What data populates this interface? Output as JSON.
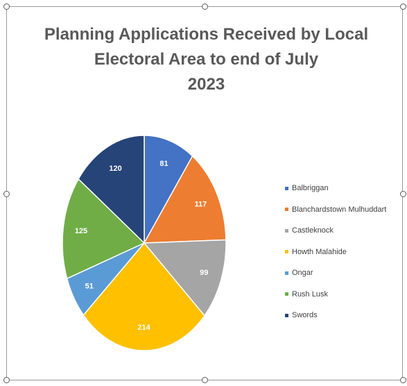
{
  "chart_data": {
    "type": "pie",
    "title_lines": [
      "Planning Applications Received by Local",
      "Electoral Area to end of July",
      "2023"
    ],
    "categories": [
      "Balbriggan",
      "Blanchardstown Mulhuddart",
      "Castleknock",
      "Howth Malahide",
      "Ongar",
      "Rush Lusk",
      "Swords"
    ],
    "values": [
      81,
      117,
      99,
      214,
      51,
      125,
      120
    ],
    "colors": [
      "#4472C4",
      "#ED7D31",
      "#A5A5A5",
      "#FFC000",
      "#5B9BD5",
      "#70AD47",
      "#264478"
    ],
    "data_labels": true,
    "legend_position": "right"
  }
}
